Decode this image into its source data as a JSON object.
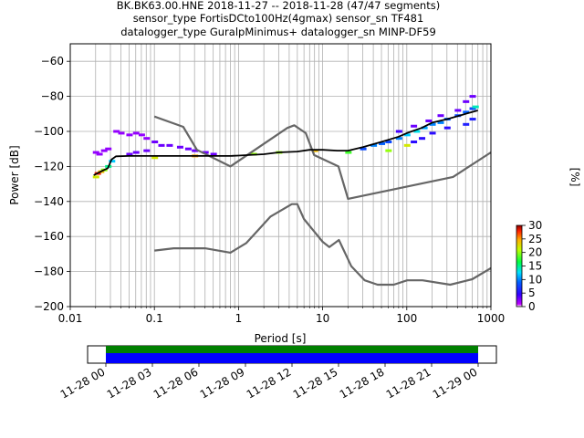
{
  "title_lines": [
    "BK.BK63.00.HNE   2018-11-27 -- 2018-11-28  (47/47 segments)",
    "sensor_type FortisDCto100Hz(4gmax) sensor_sn TF481",
    "datalogger_type GuralpMinimus+ datalogger_sn MINP-DF59"
  ],
  "colorbar": {
    "label": "[%]",
    "ticks": [
      "0",
      "5",
      "10",
      "15",
      "20",
      "25",
      "30"
    ],
    "range": [
      0,
      30
    ]
  },
  "timeline": {
    "tick_labels": [
      "11-28 00",
      "11-28 03",
      "11-28 06",
      "11-28 09",
      "11-28 12",
      "11-28 15",
      "11-28 18",
      "11-28 21",
      "11-29 00"
    ],
    "coverage_color": "#0000ff",
    "gap_color": "#008000"
  },
  "chart_data": {
    "type": "line",
    "title": "BK.BK63.00.HNE   2018-11-27 -- 2018-11-28  (47/47 segments)",
    "xlabel": "Period [s]",
    "ylabel": "Power [dB]",
    "xscale": "log",
    "xlim": [
      0.01,
      1000
    ],
    "ylim": [
      -200,
      -50
    ],
    "grid": true,
    "x_ticks": [
      {
        "v": 0.01,
        "label": "0.01"
      },
      {
        "v": 0.1,
        "label": "0.1"
      },
      {
        "v": 1,
        "label": "1"
      },
      {
        "v": 10,
        "label": "10"
      },
      {
        "v": 100,
        "label": "100"
      },
      {
        "v": 1000,
        "label": "1000"
      }
    ],
    "y_ticks": [
      -200,
      -180,
      -160,
      -140,
      -120,
      -100,
      -80,
      -60
    ],
    "series": [
      {
        "name": "",
        "color": "#666666",
        "x": [
          0.1,
          0.17,
          0.4,
          0.8,
          1.24,
          2.4,
          4.3,
          5.0,
          6.0,
          10.0,
          12.0,
          15.6,
          21.9,
          31.6,
          45.0,
          70.0,
          101.0,
          154.0,
          328.0,
          600.0,
          1000.0
        ],
        "y": [
          -168.0,
          -166.7,
          -166.7,
          -169.2,
          -163.7,
          -148.6,
          -141.5,
          -141.5,
          -150.0,
          -163.0,
          -166.0,
          -162.0,
          -177.0,
          -185.0,
          -187.5,
          -187.5,
          -185.0,
          -185.0,
          -187.5,
          -184.4,
          -178.0
        ]
      },
      {
        "name": "",
        "color": "#666666",
        "x": [
          0.1,
          0.22,
          0.32,
          0.8,
          3.8,
          4.6,
          6.3,
          7.9,
          15.4,
          20.0,
          354.8,
          1000.0
        ],
        "y": [
          -91.5,
          -97.4,
          -110.5,
          -120.0,
          -98.0,
          -96.5,
          -101.0,
          -113.5,
          -120.0,
          -138.5,
          -126.0,
          -112.0
        ]
      },
      {
        "name": "",
        "color": "#000000",
        "x": [
          0.019,
          0.024,
          0.028,
          0.031,
          0.035,
          0.05,
          0.1,
          0.3,
          0.8,
          1.0,
          2.0,
          3.0,
          5.0,
          7.0,
          10.0,
          15.0,
          20.0,
          30.0,
          50.0,
          80.0,
          100.0,
          150.0,
          200.0,
          300.0,
          500.0,
          700.0
        ],
        "y": [
          -125.0,
          -122.5,
          -121.0,
          -116.0,
          -114.2,
          -114.0,
          -114.0,
          -114.0,
          -114.0,
          -113.8,
          -113.0,
          -112.0,
          -111.5,
          -110.5,
          -110.5,
          -111.0,
          -111.0,
          -109.0,
          -106.0,
          -103.0,
          -101.0,
          -98.0,
          -95.0,
          -93.0,
          -90.0,
          -88.0
        ]
      }
    ],
    "ppsd_density": {
      "description_free": true,
      "cells": [
        {
          "x": 0.02,
          "y": -126,
          "pct": 22
        },
        {
          "x": 0.021,
          "y": -124,
          "pct": 28
        },
        {
          "x": 0.023,
          "y": -123,
          "pct": 24
        },
        {
          "x": 0.025,
          "y": -122,
          "pct": 20
        },
        {
          "x": 0.028,
          "y": -120,
          "pct": 15
        },
        {
          "x": 0.031,
          "y": -117,
          "pct": 12
        },
        {
          "x": 0.022,
          "y": -113,
          "pct": 2
        },
        {
          "x": 0.02,
          "y": -112,
          "pct": 2
        },
        {
          "x": 0.025,
          "y": -111,
          "pct": 2
        },
        {
          "x": 0.028,
          "y": -110,
          "pct": 2
        },
        {
          "x": 0.035,
          "y": -100,
          "pct": 2
        },
        {
          "x": 0.04,
          "y": -101,
          "pct": 2
        },
        {
          "x": 0.05,
          "y": -102,
          "pct": 2
        },
        {
          "x": 0.06,
          "y": -101,
          "pct": 2
        },
        {
          "x": 0.07,
          "y": -102,
          "pct": 2
        },
        {
          "x": 0.08,
          "y": -104,
          "pct": 2
        },
        {
          "x": 0.1,
          "y": -106,
          "pct": 3
        },
        {
          "x": 0.12,
          "y": -108,
          "pct": 3
        },
        {
          "x": 0.15,
          "y": -108,
          "pct": 3
        },
        {
          "x": 0.2,
          "y": -109,
          "pct": 3
        },
        {
          "x": 0.25,
          "y": -110,
          "pct": 3
        },
        {
          "x": 0.3,
          "y": -111,
          "pct": 3
        },
        {
          "x": 0.4,
          "y": -112,
          "pct": 3
        },
        {
          "x": 0.5,
          "y": -113,
          "pct": 3
        },
        {
          "x": 0.06,
          "y": -112,
          "pct": 3
        },
        {
          "x": 0.08,
          "y": -111,
          "pct": 3
        },
        {
          "x": 0.05,
          "y": -113,
          "pct": 3
        },
        {
          "x": 30,
          "y": -110,
          "pct": 8
        },
        {
          "x": 40,
          "y": -108,
          "pct": 10
        },
        {
          "x": 50,
          "y": -107,
          "pct": 9
        },
        {
          "x": 60,
          "y": -106,
          "pct": 8
        },
        {
          "x": 80,
          "y": -104,
          "pct": 10
        },
        {
          "x": 100,
          "y": -102,
          "pct": 12
        },
        {
          "x": 130,
          "y": -100,
          "pct": 13
        },
        {
          "x": 160,
          "y": -98,
          "pct": 11
        },
        {
          "x": 200,
          "y": -96,
          "pct": 10
        },
        {
          "x": 250,
          "y": -95,
          "pct": 10
        },
        {
          "x": 300,
          "y": -93,
          "pct": 9
        },
        {
          "x": 400,
          "y": -91,
          "pct": 8
        },
        {
          "x": 500,
          "y": -89,
          "pct": 9
        },
        {
          "x": 600,
          "y": -87,
          "pct": 8
        },
        {
          "x": 120,
          "y": -106,
          "pct": 5
        },
        {
          "x": 150,
          "y": -104,
          "pct": 5
        },
        {
          "x": 200,
          "y": -101,
          "pct": 5
        },
        {
          "x": 300,
          "y": -98,
          "pct": 5
        },
        {
          "x": 500,
          "y": -96,
          "pct": 6
        },
        {
          "x": 600,
          "y": -93,
          "pct": 6
        },
        {
          "x": 80,
          "y": -100,
          "pct": 4
        },
        {
          "x": 120,
          "y": -97,
          "pct": 3
        },
        {
          "x": 180,
          "y": -94,
          "pct": 3
        },
        {
          "x": 250,
          "y": -91,
          "pct": 3
        },
        {
          "x": 400,
          "y": -88,
          "pct": 3
        },
        {
          "x": 600,
          "y": -80,
          "pct": 3
        },
        {
          "x": 500,
          "y": -83,
          "pct": 3
        },
        {
          "x": 650,
          "y": -86,
          "pct": 14
        },
        {
          "x": 60,
          "y": -111,
          "pct": 20
        },
        {
          "x": 100,
          "y": -108,
          "pct": 22
        },
        {
          "x": 20,
          "y": -112,
          "pct": 18
        },
        {
          "x": 3,
          "y": -112,
          "pct": 20
        },
        {
          "x": 1.5,
          "y": -113,
          "pct": 20
        },
        {
          "x": 0.3,
          "y": -114,
          "pct": 25
        },
        {
          "x": 0.1,
          "y": -115,
          "pct": 22
        },
        {
          "x": 8,
          "y": -111,
          "pct": 24
        }
      ]
    },
    "colorbar_range": [
      0,
      30
    ]
  }
}
